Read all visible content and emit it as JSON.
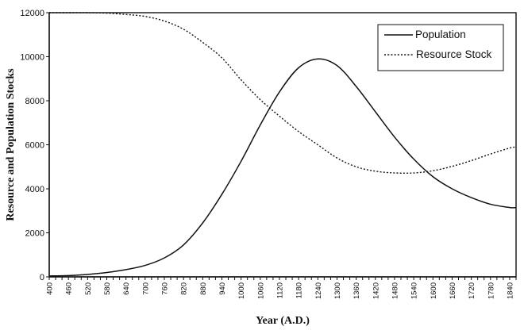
{
  "chart_data": {
    "type": "line",
    "title": "",
    "xlabel": "Year (A.D.)",
    "ylabel": "Resource and Population Stocks",
    "xlim": [
      400,
      1860
    ],
    "ylim": [
      0,
      12000
    ],
    "yticks": [
      0,
      2000,
      4000,
      6000,
      8000,
      10000,
      12000
    ],
    "xticks": [
      400,
      460,
      520,
      580,
      640,
      700,
      760,
      820,
      880,
      940,
      1000,
      1060,
      1120,
      1180,
      1240,
      1300,
      1360,
      1420,
      1480,
      1540,
      1600,
      1660,
      1720,
      1780,
      1840
    ],
    "legend_position": "top-right",
    "series": [
      {
        "name": "Population",
        "style": "solid",
        "x": [
          400,
          460,
          520,
          580,
          640,
          700,
          760,
          820,
          880,
          940,
          1000,
          1060,
          1120,
          1180,
          1240,
          1300,
          1360,
          1420,
          1480,
          1540,
          1600,
          1660,
          1720,
          1780,
          1840,
          1860
        ],
        "values": [
          40,
          60,
          110,
          200,
          330,
          520,
          860,
          1450,
          2450,
          3750,
          5250,
          6900,
          8400,
          9500,
          9900,
          9600,
          8650,
          7500,
          6350,
          5350,
          4550,
          4000,
          3600,
          3300,
          3150,
          3150
        ]
      },
      {
        "name": "Resource Stock",
        "style": "dotted",
        "x": [
          400,
          460,
          520,
          580,
          640,
          700,
          760,
          820,
          880,
          940,
          1000,
          1060,
          1120,
          1180,
          1240,
          1300,
          1360,
          1420,
          1480,
          1540,
          1600,
          1660,
          1720,
          1780,
          1840,
          1860
        ],
        "values": [
          12000,
          12000,
          12000,
          11980,
          11920,
          11830,
          11620,
          11250,
          10650,
          9950,
          8950,
          8050,
          7300,
          6600,
          6000,
          5400,
          5000,
          4800,
          4720,
          4720,
          4820,
          5020,
          5280,
          5580,
          5850,
          5900
        ]
      }
    ]
  }
}
